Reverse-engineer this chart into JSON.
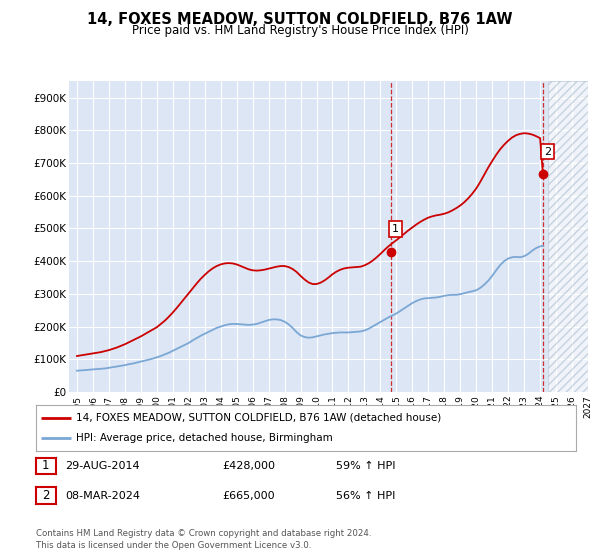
{
  "title": "14, FOXES MEADOW, SUTTON COLDFIELD, B76 1AW",
  "subtitle": "Price paid vs. HM Land Registry's House Price Index (HPI)",
  "ylim": [
    0,
    950000
  ],
  "yticks": [
    0,
    100000,
    200000,
    300000,
    400000,
    500000,
    600000,
    700000,
    800000,
    900000
  ],
  "ytick_labels": [
    "£0",
    "£100K",
    "£200K",
    "£300K",
    "£400K",
    "£500K",
    "£600K",
    "£700K",
    "£800K",
    "£900K"
  ],
  "background_color": "#ffffff",
  "plot_bg_color": "#dce6f5",
  "grid_color": "#ffffff",
  "red_line_color": "#cc0000",
  "blue_line_color": "#7ba7d4",
  "vline_color": "#cc0000",
  "sale1_x": 2014.66,
  "sale1_y": 428000,
  "sale1_label": "1",
  "sale2_x": 2024.18,
  "sale2_y": 665000,
  "sale2_label": "2",
  "legend_line1": "14, FOXES MEADOW, SUTTON COLDFIELD, B76 1AW (detached house)",
  "legend_line2": "HPI: Average price, detached house, Birmingham",
  "table_row1": [
    "1",
    "29-AUG-2014",
    "£428,000",
    "59% ↑ HPI"
  ],
  "table_row2": [
    "2",
    "08-MAR-2024",
    "£665,000",
    "56% ↑ HPI"
  ],
  "footnote": "Contains HM Land Registry data © Crown copyright and database right 2024.\nThis data is licensed under the Open Government Licence v3.0.",
  "hpi_x": [
    1995,
    1995.25,
    1995.5,
    1995.75,
    1996,
    1996.25,
    1996.5,
    1996.75,
    1997,
    1997.25,
    1997.5,
    1997.75,
    1998,
    1998.25,
    1998.5,
    1998.75,
    1999,
    1999.25,
    1999.5,
    1999.75,
    2000,
    2000.25,
    2000.5,
    2000.75,
    2001,
    2001.25,
    2001.5,
    2001.75,
    2002,
    2002.25,
    2002.5,
    2002.75,
    2003,
    2003.25,
    2003.5,
    2003.75,
    2004,
    2004.25,
    2004.5,
    2004.75,
    2005,
    2005.25,
    2005.5,
    2005.75,
    2006,
    2006.25,
    2006.5,
    2006.75,
    2007,
    2007.25,
    2007.5,
    2007.75,
    2008,
    2008.25,
    2008.5,
    2008.75,
    2009,
    2009.25,
    2009.5,
    2009.75,
    2010,
    2010.25,
    2010.5,
    2010.75,
    2011,
    2011.25,
    2011.5,
    2011.75,
    2012,
    2012.25,
    2012.5,
    2012.75,
    2013,
    2013.25,
    2013.5,
    2013.75,
    2014,
    2014.25,
    2014.5,
    2014.75,
    2015,
    2015.25,
    2015.5,
    2015.75,
    2016,
    2016.25,
    2016.5,
    2016.75,
    2017,
    2017.25,
    2017.5,
    2017.75,
    2018,
    2018.25,
    2018.5,
    2018.75,
    2019,
    2019.25,
    2019.5,
    2019.75,
    2020,
    2020.25,
    2020.5,
    2020.75,
    2021,
    2021.25,
    2021.5,
    2021.75,
    2022,
    2022.25,
    2022.5,
    2022.75,
    2023,
    2023.25,
    2023.5,
    2023.75,
    2024,
    2024.18
  ],
  "hpi_y": [
    65000,
    66000,
    67000,
    68000,
    69000,
    70000,
    71000,
    72000,
    74000,
    76000,
    78000,
    80000,
    82000,
    85000,
    87000,
    90000,
    93000,
    96000,
    99000,
    102000,
    106000,
    110000,
    115000,
    120000,
    126000,
    132000,
    138000,
    144000,
    150000,
    158000,
    165000,
    172000,
    178000,
    184000,
    190000,
    196000,
    200000,
    204000,
    207000,
    208000,
    208000,
    207000,
    206000,
    205000,
    206000,
    208000,
    212000,
    216000,
    220000,
    222000,
    222000,
    220000,
    215000,
    207000,
    196000,
    183000,
    173000,
    168000,
    166000,
    167000,
    170000,
    173000,
    176000,
    178000,
    180000,
    181000,
    182000,
    182000,
    182000,
    183000,
    184000,
    185000,
    188000,
    193000,
    200000,
    207000,
    214000,
    221000,
    228000,
    234000,
    240000,
    248000,
    256000,
    264000,
    272000,
    278000,
    283000,
    286000,
    287000,
    288000,
    289000,
    291000,
    294000,
    296000,
    297000,
    297000,
    299000,
    302000,
    305000,
    308000,
    311000,
    318000,
    328000,
    340000,
    355000,
    372000,
    388000,
    400000,
    408000,
    412000,
    413000,
    412000,
    415000,
    422000,
    432000,
    440000,
    445000,
    447000
  ],
  "red_x": [
    1995,
    1995.25,
    1995.5,
    1995.75,
    1996,
    1996.25,
    1996.5,
    1996.75,
    1997,
    1997.25,
    1997.5,
    1997.75,
    1998,
    1998.25,
    1998.5,
    1998.75,
    1999,
    1999.25,
    1999.5,
    1999.75,
    2000,
    2000.25,
    2000.5,
    2000.75,
    2001,
    2001.25,
    2001.5,
    2001.75,
    2002,
    2002.25,
    2002.5,
    2002.75,
    2003,
    2003.25,
    2003.5,
    2003.75,
    2004,
    2004.25,
    2004.5,
    2004.75,
    2005,
    2005.25,
    2005.5,
    2005.75,
    2006,
    2006.25,
    2006.5,
    2006.75,
    2007,
    2007.25,
    2007.5,
    2007.75,
    2008,
    2008.25,
    2008.5,
    2008.75,
    2009,
    2009.25,
    2009.5,
    2009.75,
    2010,
    2010.25,
    2010.5,
    2010.75,
    2011,
    2011.25,
    2011.5,
    2011.75,
    2012,
    2012.25,
    2012.5,
    2012.75,
    2013,
    2013.25,
    2013.5,
    2013.75,
    2014,
    2014.25,
    2014.5,
    2014.75,
    2015,
    2015.25,
    2015.5,
    2015.75,
    2016,
    2016.25,
    2016.5,
    2016.75,
    2017,
    2017.25,
    2017.5,
    2017.75,
    2018,
    2018.25,
    2018.5,
    2018.75,
    2019,
    2019.25,
    2019.5,
    2019.75,
    2020,
    2020.25,
    2020.5,
    2020.75,
    2021,
    2021.25,
    2021.5,
    2021.75,
    2022,
    2022.25,
    2022.5,
    2022.75,
    2023,
    2023.25,
    2023.5,
    2023.75,
    2024,
    2024.18
  ],
  "red_y": [
    110000,
    112000,
    114000,
    116000,
    118000,
    120000,
    122000,
    125000,
    128000,
    132000,
    136000,
    141000,
    146000,
    152000,
    158000,
    164000,
    170000,
    177000,
    184000,
    191000,
    198000,
    208000,
    218000,
    230000,
    243000,
    257000,
    272000,
    287000,
    302000,
    317000,
    332000,
    346000,
    358000,
    369000,
    378000,
    385000,
    390000,
    393000,
    394000,
    393000,
    390000,
    385000,
    380000,
    375000,
    372000,
    371000,
    372000,
    374000,
    377000,
    380000,
    383000,
    385000,
    385000,
    382000,
    376000,
    367000,
    355000,
    344000,
    335000,
    330000,
    330000,
    334000,
    341000,
    350000,
    360000,
    368000,
    374000,
    378000,
    380000,
    381000,
    382000,
    383000,
    387000,
    393000,
    401000,
    411000,
    422000,
    434000,
    445000,
    455000,
    464000,
    474000,
    484000,
    494000,
    503000,
    512000,
    520000,
    527000,
    533000,
    537000,
    540000,
    542000,
    545000,
    549000,
    555000,
    562000,
    570000,
    580000,
    592000,
    606000,
    622000,
    642000,
    664000,
    686000,
    706000,
    725000,
    742000,
    756000,
    768000,
    778000,
    785000,
    789000,
    791000,
    790000,
    787000,
    782000,
    776000,
    665000
  ],
  "xlim_left": 1994.5,
  "xlim_right": 2027.0,
  "xticks": [
    1995,
    1996,
    1997,
    1998,
    1999,
    2000,
    2001,
    2002,
    2003,
    2004,
    2005,
    2006,
    2007,
    2008,
    2009,
    2010,
    2011,
    2012,
    2013,
    2014,
    2015,
    2016,
    2017,
    2018,
    2019,
    2020,
    2021,
    2022,
    2023,
    2024,
    2025,
    2026,
    2027
  ],
  "hatched_region_start": 2024.5,
  "hatched_region_end": 2027.0
}
